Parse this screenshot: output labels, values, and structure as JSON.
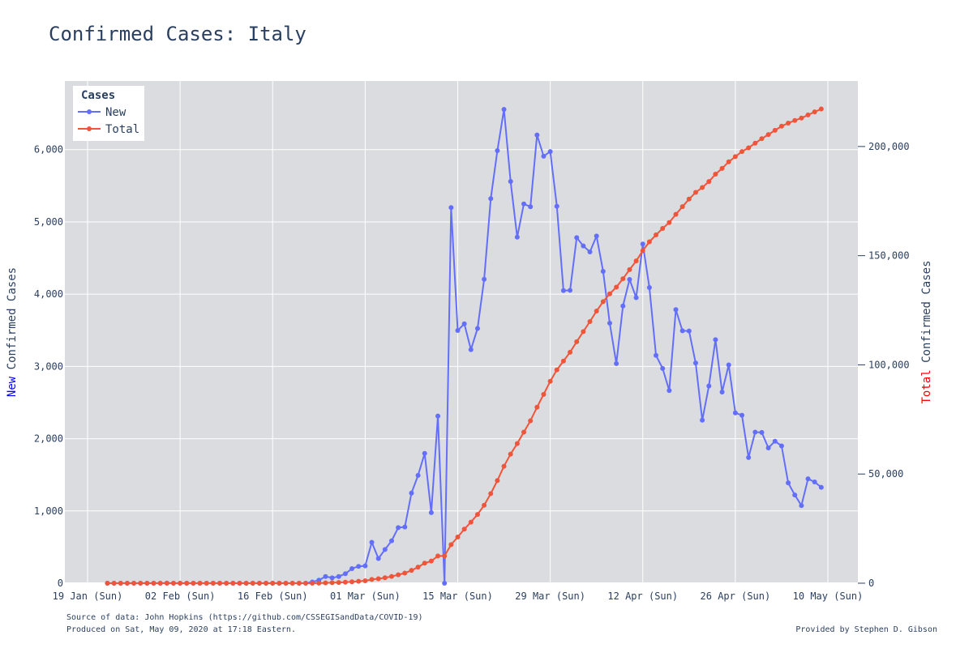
{
  "chart_data": {
    "type": "line",
    "title": "Confirmed Cases: Italy",
    "x_axis": {
      "type": "date",
      "range": [
        "2020-01-19",
        "2020-05-10"
      ],
      "tick_labels": [
        "19 Jan (Sun)",
        "02 Feb (Sun)",
        "16 Feb (Sun)",
        "01 Mar (Sun)",
        "15 Mar (Sun)",
        "29 Mar (Sun)",
        "12 Apr (Sun)",
        "26 Apr (Sun)",
        "10 May (Sun)"
      ],
      "tick_dates": [
        "2020-01-19",
        "2020-02-02",
        "2020-02-16",
        "2020-03-01",
        "2020-03-15",
        "2020-03-29",
        "2020-04-12",
        "2020-04-26",
        "2020-05-10"
      ]
    },
    "y_left": {
      "title_highlight": "New",
      "title_rest": " Confirmed Cases",
      "highlight_color": "#0000ff",
      "range": [
        0,
        6950
      ],
      "ticks": [
        0,
        1000,
        2000,
        3000,
        4000,
        5000,
        6000
      ],
      "tick_labels": [
        "0",
        "1,000",
        "2,000",
        "3,000",
        "4,000",
        "5,000",
        "6,000"
      ]
    },
    "y_right": {
      "title_highlight": "Total",
      "title_rest": " Confirmed Cases",
      "highlight_color": "#ff0000",
      "range": [
        0,
        230000
      ],
      "ticks": [
        0,
        50000,
        100000,
        150000,
        200000
      ],
      "tick_labels": [
        "0",
        "50,000",
        "100,000",
        "150,000",
        "200,000"
      ]
    },
    "grid": true,
    "legend": {
      "title": "Cases",
      "placement": "top-left",
      "entries": [
        {
          "name": "New",
          "color": "#636efa"
        },
        {
          "name": "Total",
          "color": "#ef553b"
        }
      ]
    },
    "dates": {
      "start": "2020-01-22",
      "end": "2020-05-08"
    },
    "series": [
      {
        "name": "New",
        "axis": "left",
        "color": "#636efa",
        "values": [
          0,
          0,
          0,
          0,
          0,
          0,
          0,
          0,
          0,
          2,
          0,
          0,
          0,
          0,
          0,
          0,
          0,
          0,
          0,
          0,
          0,
          0,
          0,
          0,
          0,
          0,
          0,
          0,
          0,
          0,
          0,
          17,
          42,
          93,
          74,
          93,
          131,
          202,
          233,
          240,
          566,
          342,
          466,
          587,
          769,
          778,
          1247,
          1492,
          1797,
          977,
          2313,
          0,
          5198,
          3497,
          3590,
          3233,
          3526,
          4207,
          5322,
          5986,
          6557,
          5560,
          4789,
          5249,
          5210,
          6203,
          5909,
          5974,
          5217,
          4050,
          4053,
          4782,
          4668,
          4585,
          4805,
          4316,
          3599,
          3039,
          3836,
          4204,
          3951,
          4694,
          4092,
          3153,
          2972,
          2667,
          3786,
          3493,
          3491,
          3047,
          2256,
          2729,
          3370,
          2646,
          3021,
          2357,
          2324,
          1739,
          2091,
          2086,
          1872,
          1965,
          1900,
          1389,
          1221,
          1075,
          1444,
          1401,
          1327
        ]
      },
      {
        "name": "Total",
        "axis": "right",
        "color": "#ef553b",
        "values": [
          0,
          0,
          0,
          0,
          0,
          0,
          0,
          0,
          0,
          2,
          2,
          2,
          2,
          2,
          2,
          2,
          2,
          2,
          2,
          2,
          2,
          2,
          2,
          2,
          2,
          2,
          2,
          2,
          2,
          2,
          3,
          20,
          62,
          155,
          229,
          322,
          453,
          655,
          888,
          1128,
          1694,
          2036,
          2502,
          3089,
          3858,
          4636,
          5883,
          7375,
          9172,
          10149,
          12462,
          12462,
          17660,
          21157,
          24747,
          27980,
          31506,
          35713,
          41035,
          47021,
          53578,
          59138,
          63927,
          69176,
          74386,
          80589,
          86498,
          92472,
          97689,
          101739,
          105792,
          110574,
          115242,
          119827,
          124632,
          128948,
          132547,
          135586,
          139422,
          143626,
          147577,
          152271,
          156363,
          159516,
          162488,
          165155,
          168941,
          172434,
          175925,
          178972,
          181228,
          183957,
          187327,
          189973,
          192994,
          195351,
          197675,
          199414,
          201505,
          203591,
          205463,
          207428,
          209328,
          210717,
          211938,
          213013,
          214457,
          215858,
          217185
        ]
      }
    ],
    "footnotes": {
      "source": "Source of data: John Hopkins (https://github.com/CSSEGISandData/COVID-19)",
      "produced": "Produced on Sat, May 09, 2020 at 17:18 Eastern.",
      "credit": "Provided by Stephen D. Gibson"
    }
  }
}
